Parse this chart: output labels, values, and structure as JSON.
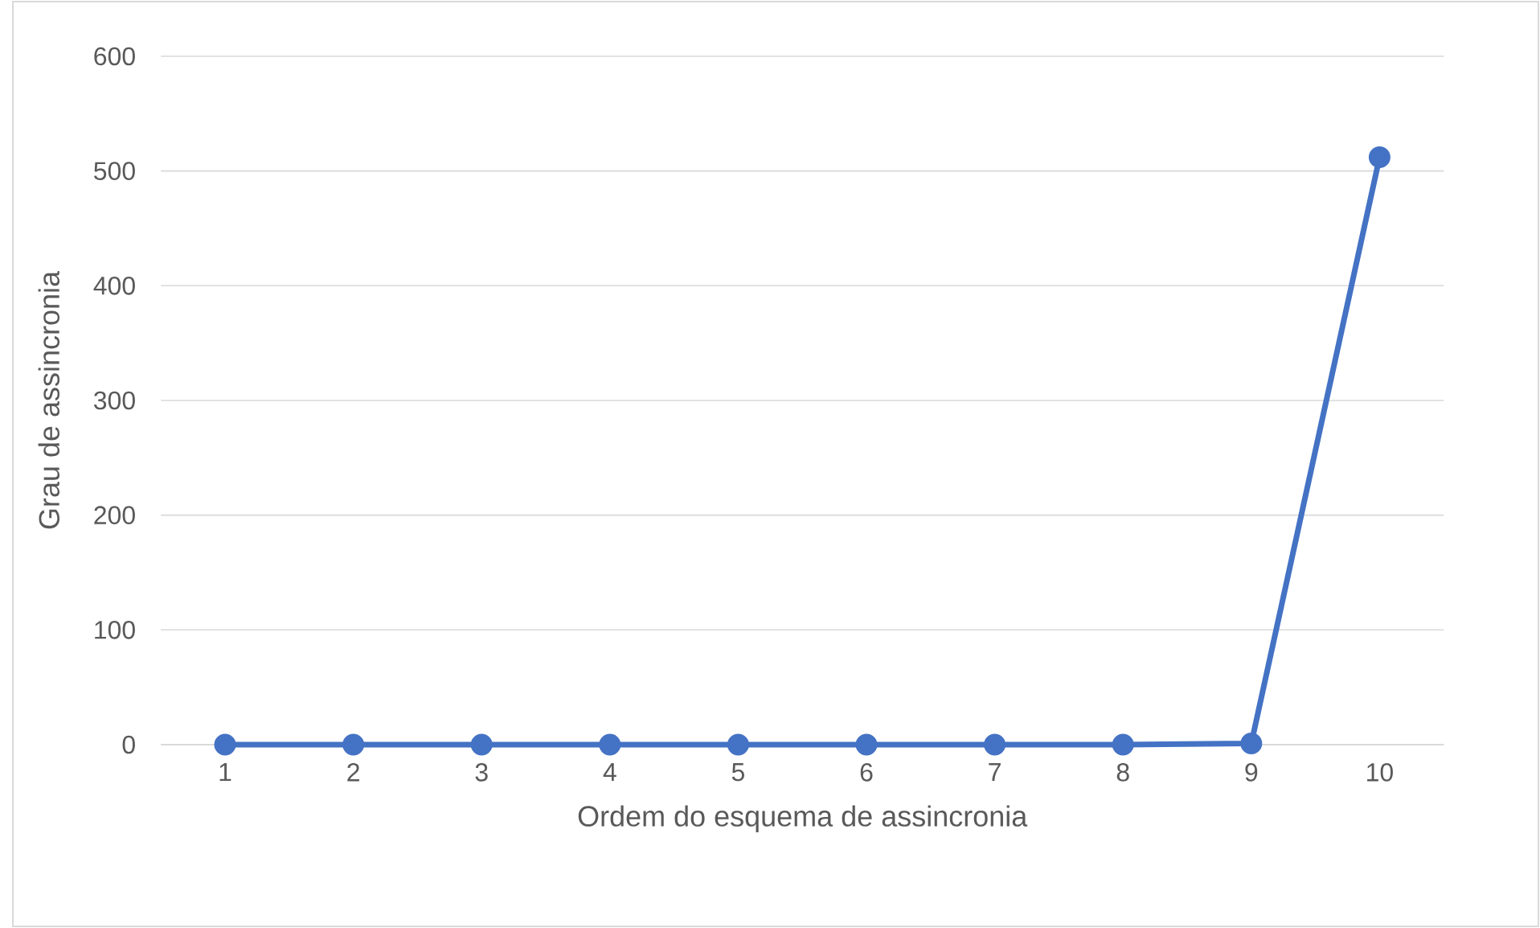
{
  "chart_data": {
    "type": "line",
    "xlabel": "Ordem do esquema de assincronia",
    "ylabel": "Grau de assincronia",
    "categories": [
      "1",
      "2",
      "3",
      "4",
      "5",
      "6",
      "7",
      "8",
      "9",
      "10"
    ],
    "values": [
      0,
      0,
      0,
      0,
      0,
      0,
      0,
      0,
      1,
      512
    ],
    "color": "#4472c4",
    "ylim": [
      0,
      600
    ],
    "yticks": [
      0,
      100,
      200,
      300,
      400,
      500,
      600
    ],
    "grid": "y",
    "marker": "circle",
    "line_style": "solid"
  }
}
